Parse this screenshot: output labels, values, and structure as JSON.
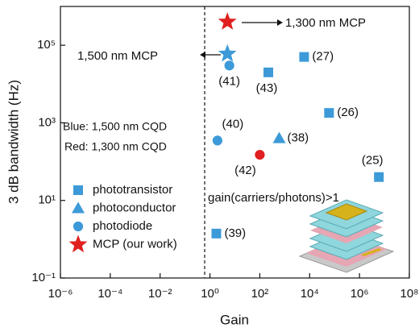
{
  "chart_data": {
    "type": "scatter",
    "x_label": "Gain",
    "y_label": "3 dB bandwidth (Hz)",
    "xscale": "log",
    "yscale": "log",
    "xlim": [
      1e-06,
      100000000
    ],
    "ylim": [
      0.1,
      1000000
    ],
    "xticks": [
      {
        "value": 1e-06,
        "label": "10⁻⁶"
      },
      {
        "value": 0.0001,
        "label": "10⁻⁴"
      },
      {
        "value": 0.01,
        "label": "10⁻²"
      },
      {
        "value": 1,
        "label": "10⁰"
      },
      {
        "value": 100,
        "label": "10²"
      },
      {
        "value": 10000,
        "label": "10⁴"
      },
      {
        "value": 1000000,
        "label": "10⁶"
      },
      {
        "value": 100000000,
        "label": "10⁸"
      }
    ],
    "yticks": [
      {
        "value": 0.1,
        "label": "10⁻¹"
      },
      {
        "value": 10,
        "label": "10¹"
      },
      {
        "value": 1000,
        "label": "10³"
      },
      {
        "value": 100000,
        "label": "10⁵"
      }
    ],
    "legend_position": "lower left",
    "series": [
      {
        "name": "phototransistor",
        "marker": "square",
        "color": "#3d9ad8",
        "x": [
          220,
          6000,
          60000,
          6000000,
          1.8
        ],
        "values": [
          20000,
          50000,
          1800,
          40,
          1.4
        ],
        "point_labels": [
          "(43)",
          "(27)",
          "(26)",
          "(25)",
          "(39)"
        ]
      },
      {
        "name": "photoconductor",
        "marker": "triangle",
        "color": "#3d9ad8",
        "x": [
          600
        ],
        "values": [
          400
        ],
        "point_labels": [
          "(38)"
        ]
      },
      {
        "name": "photodiode",
        "marker": "circle",
        "color": "#3d9ad8",
        "point_colors": [
          "#3d9ad8",
          "#3d9ad8",
          "#e02020"
        ],
        "x": [
          2,
          6,
          100
        ],
        "values": [
          350,
          30000,
          150
        ],
        "point_labels": [
          "(40)",
          "(41)",
          "(42)"
        ]
      },
      {
        "name": "MCP (our work)",
        "marker": "star",
        "color": "#e02020",
        "point_colors": [
          "#3d9ad8",
          "#e02020"
        ],
        "x": [
          5,
          5
        ],
        "values": [
          60000,
          400000
        ]
      }
    ],
    "annotations": [
      "1,300 nm MCP",
      "1,500 nm  MCP",
      "Blue:  1,500 nm CQD",
      "Red:  1,300 nm CQD",
      "gain(carriers/photons)>1"
    ]
  }
}
